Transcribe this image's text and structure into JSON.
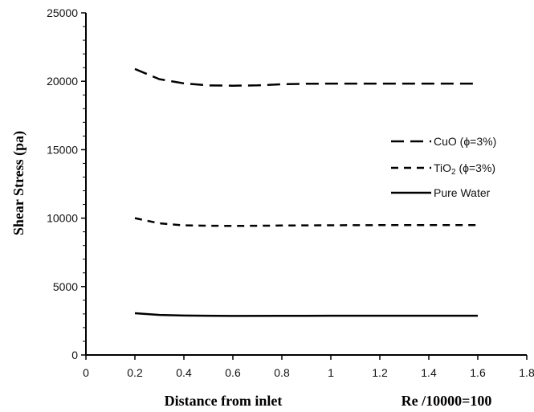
{
  "chart_data": {
    "type": "line",
    "xlabel": "Distance from inlet",
    "xlabel_extra": "Re /10000=100",
    "ylabel": "Shear Stress (pa)",
    "xlim": [
      0,
      1.8
    ],
    "ylim": [
      0,
      25000
    ],
    "x_ticks": [
      "0",
      "0.2",
      "0.4",
      "0.6",
      "0.8",
      "1",
      "1.2",
      "1.4",
      "1.6",
      "1.8"
    ],
    "y_ticks": [
      "0",
      "5000",
      "10000",
      "15000",
      "20000",
      "25000"
    ],
    "grid": false,
    "legend_position": "right",
    "series": [
      {
        "name": "CuO (ϕ=3%)",
        "legend_parts": {
          "main": "CuO (ϕ=3%)",
          "sub": "",
          "tail": ""
        },
        "style": "long-dash",
        "color": "#000000",
        "x": [
          0.2,
          0.3,
          0.4,
          0.5,
          0.6,
          0.7,
          0.8,
          0.9,
          1.0,
          1.2,
          1.4,
          1.6
        ],
        "y": [
          20900,
          20150,
          19850,
          19700,
          19680,
          19700,
          19780,
          19820,
          19830,
          19830,
          19830,
          19830
        ]
      },
      {
        "name": "TiO2 (ϕ=3%)",
        "legend_parts": {
          "main": "TiO",
          "sub": "2",
          "tail": " (ϕ=3%)"
        },
        "style": "short-dash",
        "color": "#000000",
        "x": [
          0.2,
          0.3,
          0.4,
          0.5,
          0.6,
          0.7,
          0.8,
          1.0,
          1.2,
          1.4,
          1.6
        ],
        "y": [
          10000,
          9620,
          9470,
          9440,
          9430,
          9440,
          9460,
          9480,
          9490,
          9490,
          9490
        ]
      },
      {
        "name": "Pure Water",
        "legend_parts": {
          "main": "Pure Water",
          "sub": "",
          "tail": ""
        },
        "style": "solid",
        "color": "#000000",
        "x": [
          0.2,
          0.3,
          0.4,
          0.6,
          0.8,
          1.0,
          1.2,
          1.4,
          1.6
        ],
        "y": [
          3050,
          2930,
          2880,
          2850,
          2860,
          2870,
          2870,
          2870,
          2870
        ]
      }
    ]
  }
}
